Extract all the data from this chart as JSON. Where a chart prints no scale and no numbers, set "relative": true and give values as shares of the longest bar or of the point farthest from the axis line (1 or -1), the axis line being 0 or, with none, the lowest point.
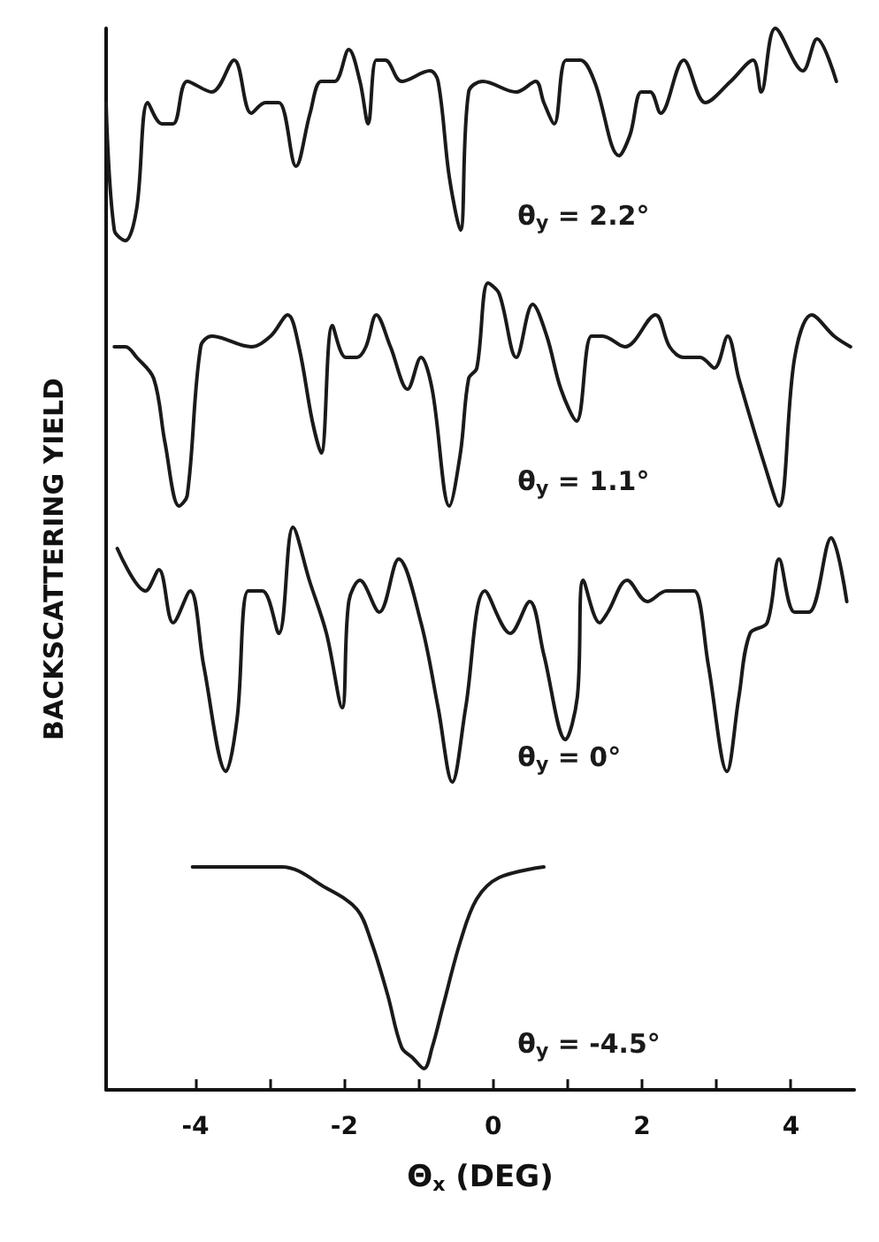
{
  "chart_data": {
    "type": "line",
    "relative": true,
    "xlabel": "Θ$_{x}$ (DEG)",
    "ylabel": "BACKSCATTERING YIELD",
    "xlim": [
      -5.2,
      4.85
    ],
    "xticks": [
      -4,
      {
        "value": -3,
        "label": null
      },
      -2,
      {
        "value": -1,
        "label": null
      },
      0,
      {
        "value": 1,
        "label": null
      },
      2,
      {
        "value": 3,
        "label": null
      },
      4
    ],
    "grid": false,
    "marker": "none",
    "line_style": "solid",
    "series": [
      {
        "name": "θ$_{y}$ = 2.2°",
        "color": "#1a1a1a",
        "x": [
          -5.2,
          -5.09,
          -4.94,
          -4.79,
          -4.64,
          -4.45,
          -4.3,
          -4.11,
          -3.78,
          -3.48,
          -3.25,
          -3.06,
          -2.88,
          -2.65,
          -2.46,
          -2.31,
          -2.13,
          -1.94,
          -1.79,
          -1.68,
          -1.57,
          -1.45,
          -1.23,
          -0.85,
          -0.74,
          -0.59,
          -0.44,
          -0.33,
          -0.14,
          0.31,
          0.57,
          0.68,
          0.82,
          0.98,
          1.17,
          1.36,
          1.69,
          1.84,
          1.99,
          2.11,
          2.25,
          2.56,
          2.85,
          3.19,
          3.49,
          3.6,
          3.79,
          4.16,
          4.35,
          4.61
        ],
        "values": [
          0.93,
          0.81,
          0.8,
          0.83,
          0.93,
          0.91,
          0.91,
          0.95,
          0.94,
          0.97,
          0.92,
          0.93,
          0.93,
          0.87,
          0.92,
          0.95,
          0.95,
          0.98,
          0.95,
          0.91,
          0.97,
          0.97,
          0.95,
          0.96,
          0.95,
          0.86,
          0.81,
          0.94,
          0.95,
          0.94,
          0.95,
          0.93,
          0.91,
          0.97,
          0.97,
          0.95,
          0.88,
          0.9,
          0.94,
          0.94,
          0.92,
          0.97,
          0.93,
          0.95,
          0.97,
          0.94,
          1.0,
          0.96,
          0.99,
          0.95
        ]
      },
      {
        "name": "θ$_{y}$ = 1.1°",
        "color": "#1a1a1a",
        "x": [
          -5.09,
          -4.94,
          -4.79,
          -4.56,
          -4.41,
          -4.22,
          -4.11,
          -3.93,
          -3.78,
          -3.25,
          -2.99,
          -2.76,
          -2.61,
          -2.43,
          -2.31,
          -2.16,
          -1.98,
          -1.83,
          -1.71,
          -1.57,
          -1.38,
          -1.15,
          -0.97,
          -0.82,
          -0.59,
          -0.44,
          -0.33,
          -0.22,
          -0.07,
          0.08,
          0.31,
          0.53,
          0.72,
          0.91,
          1.12,
          1.32,
          1.47,
          1.77,
          2.18,
          2.37,
          2.56,
          2.78,
          2.97,
          3.15,
          3.3,
          3.64,
          3.84,
          4.05,
          4.28,
          4.58,
          4.8
        ],
        "values": [
          0.7,
          0.7,
          0.69,
          0.67,
          0.61,
          0.55,
          0.56,
          0.7,
          0.71,
          0.7,
          0.71,
          0.73,
          0.7,
          0.63,
          0.6,
          0.72,
          0.69,
          0.69,
          0.7,
          0.73,
          0.7,
          0.66,
          0.69,
          0.66,
          0.55,
          0.6,
          0.67,
          0.68,
          0.76,
          0.75,
          0.69,
          0.74,
          0.71,
          0.66,
          0.63,
          0.71,
          0.71,
          0.7,
          0.73,
          0.7,
          0.69,
          0.69,
          0.68,
          0.71,
          0.67,
          0.59,
          0.55,
          0.69,
          0.73,
          0.71,
          0.7
        ]
      },
      {
        "name": "θ$_{y}$ = 0°",
        "color": "#1a1a1a",
        "x": [
          -5.05,
          -4.67,
          -4.49,
          -4.3,
          -4.07,
          -3.89,
          -3.59,
          -3.44,
          -3.29,
          -3.1,
          -2.88,
          -2.69,
          -2.47,
          -2.24,
          -2.03,
          -1.94,
          -1.79,
          -1.53,
          -1.27,
          -0.97,
          -0.74,
          -0.55,
          -0.37,
          -0.11,
          0.23,
          0.49,
          0.68,
          0.97,
          1.13,
          1.21,
          1.43,
          1.54,
          1.8,
          2.07,
          2.33,
          2.56,
          2.7,
          2.89,
          3.14,
          3.3,
          3.45,
          3.68,
          3.84,
          4.05,
          4.24,
          4.54,
          4.75
        ],
        "values": [
          0.51,
          0.47,
          0.49,
          0.44,
          0.47,
          0.4,
          0.3,
          0.35,
          0.47,
          0.47,
          0.43,
          0.53,
          0.48,
          0.43,
          0.36,
          0.46,
          0.48,
          0.45,
          0.5,
          0.44,
          0.36,
          0.29,
          0.36,
          0.47,
          0.43,
          0.46,
          0.41,
          0.33,
          0.37,
          0.48,
          0.44,
          0.45,
          0.48,
          0.46,
          0.47,
          0.47,
          0.47,
          0.4,
          0.3,
          0.37,
          0.43,
          0.44,
          0.5,
          0.45,
          0.45,
          0.52,
          0.46
        ]
      },
      {
        "name": "θ$_{y}$ = -4.5°",
        "color": "#1a1a1a",
        "x": [
          -4.04,
          -2.84,
          -2.24,
          -1.83,
          -1.64,
          -1.42,
          -1.23,
          -1.08,
          -0.93,
          -0.82,
          -0.67,
          -0.44,
          -0.22,
          0.08,
          0.68
        ],
        "values": [
          0.21,
          0.21,
          0.19,
          0.17,
          0.14,
          0.09,
          0.04,
          0.03,
          0.02,
          0.04,
          0.08,
          0.14,
          0.18,
          0.2,
          0.21
        ]
      }
    ]
  }
}
